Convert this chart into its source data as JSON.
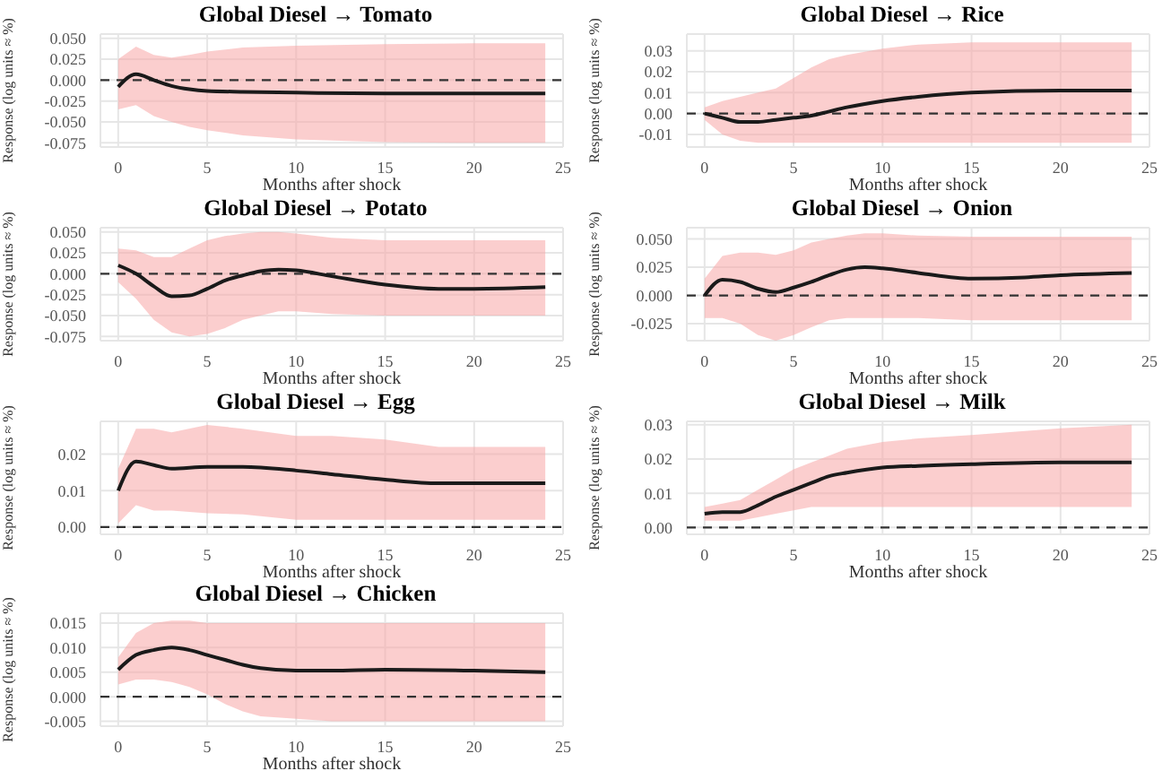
{
  "chart_data": [
    {
      "type": "line",
      "title": "Global Diesel → Tomato",
      "xlabel": "Months after shock",
      "ylabel": "Response (log units ≈ %)",
      "xlim": [
        -1,
        25
      ],
      "xticks": [
        0,
        5,
        10,
        15,
        20,
        25
      ],
      "ylim": [
        -0.08,
        0.055
      ],
      "yticks": [
        {
          "value": -0.075,
          "label": "-0.075"
        },
        {
          "value": -0.05,
          "label": "-0.050"
        },
        {
          "value": -0.025,
          "label": "-0.025"
        },
        {
          "value": 0,
          "label": "0.000"
        },
        {
          "value": 0.025,
          "label": "0.025"
        },
        {
          "value": 0.05,
          "label": "0.050"
        }
      ],
      "grid": true,
      "ref_lines": [
        {
          "axis": "y",
          "value": 0,
          "line_style": "dashed",
          "color": "#333333"
        }
      ],
      "series": [
        {
          "color": "#1a1a1a",
          "x": [
            0,
            1,
            2,
            3,
            4,
            5,
            7,
            10,
            15,
            20,
            24
          ],
          "values": [
            -0.008,
            0.007,
            0.0,
            -0.007,
            -0.011,
            -0.013,
            -0.014,
            -0.015,
            -0.016,
            -0.016,
            -0.016
          ],
          "upper": [
            0.025,
            0.04,
            0.03,
            0.027,
            0.03,
            0.034,
            0.039,
            0.041,
            0.043,
            0.044,
            0.044
          ],
          "lower": [
            -0.035,
            -0.03,
            -0.043,
            -0.05,
            -0.056,
            -0.06,
            -0.066,
            -0.071,
            -0.074,
            -0.075,
            -0.075
          ]
        }
      ]
    },
    {
      "type": "line",
      "title": "Global Diesel → Rice",
      "xlabel": "Months after shock",
      "ylabel": "Response (log units ≈ %)",
      "xlim": [
        -1,
        25
      ],
      "xticks": [
        0,
        5,
        10,
        15,
        20,
        25
      ],
      "ylim": [
        -0.016,
        0.038
      ],
      "yticks": [
        {
          "value": -0.01,
          "label": "-0.01"
        },
        {
          "value": 0,
          "label": "0.00"
        },
        {
          "value": 0.01,
          "label": "0.01"
        },
        {
          "value": 0.02,
          "label": "0.02"
        },
        {
          "value": 0.03,
          "label": "0.03"
        }
      ],
      "grid": true,
      "ref_lines": [
        {
          "axis": "y",
          "value": 0,
          "line_style": "dashed",
          "color": "#333333"
        }
      ],
      "series": [
        {
          "color": "#1a1a1a",
          "x": [
            0,
            1,
            2,
            3,
            4,
            5,
            6,
            7,
            8,
            10,
            12,
            15,
            20,
            24
          ],
          "values": [
            0,
            -0.002,
            -0.004,
            -0.004,
            -0.003,
            -0.002,
            -0.001,
            0.001,
            0.003,
            0.006,
            0.008,
            0.01,
            0.011,
            0.011
          ],
          "upper": [
            0.003,
            0.006,
            0.008,
            0.01,
            0.012,
            0.017,
            0.022,
            0.026,
            0.028,
            0.031,
            0.033,
            0.034,
            0.034,
            0.034
          ],
          "lower": [
            -0.003,
            -0.01,
            -0.013,
            -0.014,
            -0.014,
            -0.014,
            -0.014,
            -0.014,
            -0.014,
            -0.014,
            -0.014,
            -0.014,
            -0.014,
            -0.014
          ]
        }
      ]
    },
    {
      "type": "line",
      "title": "Global Diesel → Potato",
      "xlabel": "Months after shock",
      "ylabel": "Response (log units ≈ %)",
      "xlim": [
        -1,
        25
      ],
      "xticks": [
        0,
        5,
        10,
        15,
        20,
        25
      ],
      "ylim": [
        -0.08,
        0.055
      ],
      "yticks": [
        {
          "value": -0.075,
          "label": "-0.075"
        },
        {
          "value": -0.05,
          "label": "-0.050"
        },
        {
          "value": -0.025,
          "label": "-0.025"
        },
        {
          "value": 0,
          "label": "0.000"
        },
        {
          "value": 0.025,
          "label": "0.025"
        },
        {
          "value": 0.05,
          "label": "0.050"
        }
      ],
      "grid": true,
      "ref_lines": [
        {
          "axis": "y",
          "value": 0,
          "line_style": "dashed",
          "color": "#333333"
        }
      ],
      "series": [
        {
          "color": "#1a1a1a",
          "x": [
            0,
            1,
            2,
            3,
            4,
            5,
            6,
            7,
            8,
            9,
            10,
            12,
            15,
            18,
            20,
            24
          ],
          "values": [
            0.01,
            0.0,
            -0.015,
            -0.027,
            -0.026,
            -0.018,
            -0.008,
            -0.002,
            0.003,
            0.005,
            0.004,
            -0.003,
            -0.013,
            -0.018,
            -0.018,
            -0.016
          ],
          "upper": [
            0.03,
            0.028,
            0.02,
            0.02,
            0.03,
            0.04,
            0.045,
            0.048,
            0.05,
            0.05,
            0.048,
            0.043,
            0.04,
            0.04,
            0.04,
            0.04
          ],
          "lower": [
            -0.01,
            -0.03,
            -0.055,
            -0.07,
            -0.075,
            -0.072,
            -0.065,
            -0.055,
            -0.05,
            -0.045,
            -0.045,
            -0.048,
            -0.05,
            -0.05,
            -0.05,
            -0.05
          ]
        }
      ]
    },
    {
      "type": "line",
      "title": "Global Diesel → Onion",
      "xlabel": "Months after shock",
      "ylabel": "Response (log units ≈ %)",
      "xlim": [
        -1,
        25
      ],
      "xticks": [
        0,
        5,
        10,
        15,
        20,
        25
      ],
      "ylim": [
        -0.04,
        0.06
      ],
      "yticks": [
        {
          "value": -0.025,
          "label": "-0.025"
        },
        {
          "value": 0,
          "label": "0.000"
        },
        {
          "value": 0.025,
          "label": "0.025"
        },
        {
          "value": 0.05,
          "label": "0.050"
        }
      ],
      "grid": true,
      "ref_lines": [
        {
          "axis": "y",
          "value": 0,
          "line_style": "dashed",
          "color": "#333333"
        }
      ],
      "series": [
        {
          "color": "#1a1a1a",
          "x": [
            0,
            1,
            2,
            3,
            4,
            5,
            6,
            7,
            8,
            9,
            10,
            12,
            15,
            18,
            20,
            24
          ],
          "values": [
            0,
            0.014,
            0.012,
            0.006,
            0.003,
            0.007,
            0.012,
            0.018,
            0.023,
            0.025,
            0.024,
            0.02,
            0.015,
            0.016,
            0.018,
            0.02
          ],
          "upper": [
            0.015,
            0.035,
            0.038,
            0.038,
            0.036,
            0.04,
            0.047,
            0.05,
            0.053,
            0.055,
            0.055,
            0.053,
            0.052,
            0.052,
            0.052,
            0.052
          ],
          "lower": [
            -0.02,
            -0.02,
            -0.025,
            -0.035,
            -0.04,
            -0.035,
            -0.028,
            -0.022,
            -0.02,
            -0.02,
            -0.02,
            -0.02,
            -0.022,
            -0.022,
            -0.022,
            -0.022
          ]
        }
      ]
    },
    {
      "type": "line",
      "title": "Global Diesel → Egg",
      "xlabel": "Months after shock",
      "ylabel": "Response (log units ≈ %)",
      "xlim": [
        -1,
        25
      ],
      "xticks": [
        0,
        5,
        10,
        15,
        20,
        25
      ],
      "ylim": [
        -0.002,
        0.029
      ],
      "yticks": [
        {
          "value": 0,
          "label": "0.00"
        },
        {
          "value": 0.01,
          "label": "0.01"
        },
        {
          "value": 0.02,
          "label": "0.02"
        }
      ],
      "grid": true,
      "ref_lines": [
        {
          "axis": "y",
          "value": 0,
          "line_style": "dashed",
          "color": "#333333"
        }
      ],
      "series": [
        {
          "color": "#1a1a1a",
          "x": [
            0,
            1,
            2,
            3,
            5,
            7,
            10,
            12,
            15,
            18,
            20,
            24
          ],
          "values": [
            0.01,
            0.018,
            0.017,
            0.016,
            0.0165,
            0.0165,
            0.0155,
            0.0145,
            0.013,
            0.012,
            0.012,
            0.012
          ],
          "upper": [
            0.016,
            0.027,
            0.027,
            0.026,
            0.028,
            0.027,
            0.025,
            0.025,
            0.024,
            0.022,
            0.022,
            0.022
          ],
          "lower": [
            0.001,
            0.006,
            0.0045,
            0.0045,
            0.0038,
            0.0035,
            0.002,
            0.002,
            0.002,
            0.002,
            0.002,
            0.002
          ]
        }
      ]
    },
    {
      "type": "line",
      "title": "Global Diesel → Milk",
      "xlabel": "Months after shock",
      "ylabel": "Response (log units ≈ %)",
      "xlim": [
        -1,
        25
      ],
      "xticks": [
        0,
        5,
        10,
        15,
        20,
        25
      ],
      "ylim": [
        -0.002,
        0.031
      ],
      "yticks": [
        {
          "value": 0,
          "label": "0.00"
        },
        {
          "value": 0.01,
          "label": "0.01"
        },
        {
          "value": 0.02,
          "label": "0.02"
        },
        {
          "value": 0.03,
          "label": "0.03"
        }
      ],
      "grid": true,
      "ref_lines": [
        {
          "axis": "y",
          "value": 0,
          "line_style": "dashed",
          "color": "#333333"
        }
      ],
      "series": [
        {
          "color": "#1a1a1a",
          "x": [
            0,
            1,
            2,
            3,
            4,
            5,
            6,
            7,
            8,
            10,
            12,
            15,
            20,
            24
          ],
          "values": [
            0.004,
            0.0045,
            0.0045,
            0.0065,
            0.009,
            0.011,
            0.013,
            0.015,
            0.016,
            0.0175,
            0.018,
            0.0185,
            0.019,
            0.019
          ],
          "upper": [
            0.006,
            0.007,
            0.008,
            0.011,
            0.014,
            0.017,
            0.019,
            0.021,
            0.023,
            0.025,
            0.026,
            0.027,
            0.029,
            0.03
          ],
          "lower": [
            0.002,
            0.002,
            0.002,
            0.003,
            0.004,
            0.005,
            0.006,
            0.006,
            0.006,
            0.006,
            0.006,
            0.006,
            0.006,
            0.006
          ]
        }
      ]
    },
    {
      "type": "line",
      "title": "Global Diesel → Chicken",
      "xlabel": "Months after shock",
      "ylabel": "Response (log units ≈ %)",
      "xlim": [
        -1,
        25
      ],
      "xticks": [
        0,
        5,
        10,
        15,
        20,
        25
      ],
      "ylim": [
        -0.006,
        0.017
      ],
      "yticks": [
        {
          "value": -0.005,
          "label": "-0.005"
        },
        {
          "value": 0,
          "label": "0.000"
        },
        {
          "value": 0.005,
          "label": "0.005"
        },
        {
          "value": 0.01,
          "label": "0.010"
        },
        {
          "value": 0.015,
          "label": "0.015"
        }
      ],
      "grid": true,
      "ref_lines": [
        {
          "axis": "y",
          "value": 0,
          "line_style": "dashed",
          "color": "#333333"
        }
      ],
      "series": [
        {
          "color": "#1a1a1a",
          "x": [
            0,
            1,
            2,
            3,
            4,
            5,
            6,
            7,
            8,
            10,
            12,
            15,
            20,
            24
          ],
          "values": [
            0.0055,
            0.0085,
            0.0095,
            0.01,
            0.0095,
            0.0085,
            0.0075,
            0.0065,
            0.0058,
            0.0053,
            0.0053,
            0.0055,
            0.0053,
            0.005
          ],
          "upper": [
            0.008,
            0.013,
            0.015,
            0.0155,
            0.0155,
            0.015,
            0.015,
            0.015,
            0.015,
            0.015,
            0.015,
            0.015,
            0.015,
            0.015
          ],
          "lower": [
            0.0025,
            0.0035,
            0.0035,
            0.003,
            0.002,
            0.0005,
            -0.0015,
            -0.003,
            -0.004,
            -0.0045,
            -0.005,
            -0.005,
            -0.005,
            -0.005
          ]
        }
      ]
    }
  ]
}
